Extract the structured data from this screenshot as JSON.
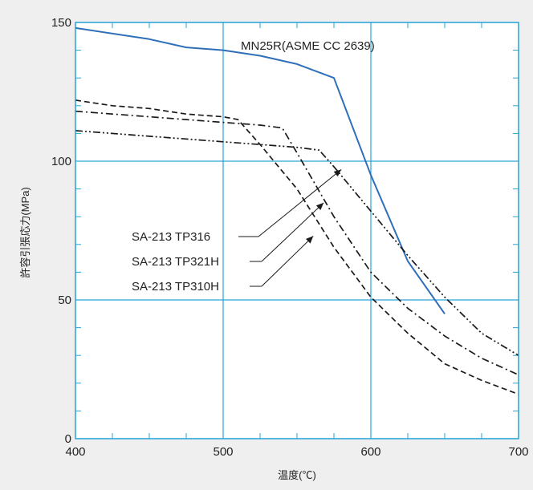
{
  "chart_data": {
    "type": "line",
    "xlabel": "温度(℃)",
    "ylabel": "許容引張応力(MPa)",
    "xlim": [
      400,
      700
    ],
    "ylim": [
      0,
      150
    ],
    "xticks": [
      400,
      500,
      600,
      700
    ],
    "yticks": [
      0,
      50,
      100,
      150
    ],
    "grid": true,
    "colors": {
      "background": "#efefef",
      "plot_bg": "#ffffff",
      "grid": "#29a3d6",
      "curve_blue": "#2f6fba",
      "curve_dark": "#1a1a1a"
    },
    "series": [
      {
        "name": "MN25R(ASME CC 2639)",
        "style": "solid",
        "color": "#2f6fba",
        "x": [
          400,
          450,
          475,
          500,
          525,
          550,
          575,
          600,
          625,
          650
        ],
        "y": [
          148,
          144,
          141,
          140,
          138,
          135,
          130,
          95,
          64,
          45
        ]
      },
      {
        "name": "SA-213 TP316",
        "style": "dash-dot-dot",
        "color": "#1a1a1a",
        "x": [
          400,
          450,
          475,
          500,
          525,
          550,
          565,
          575,
          600,
          625,
          650,
          675,
          700
        ],
        "y": [
          111,
          109,
          108,
          107,
          106,
          105,
          104,
          98,
          82,
          66,
          51,
          38,
          30
        ]
      },
      {
        "name": "SA-213 TP321H",
        "style": "dash-dot",
        "color": "#1a1a1a",
        "x": [
          400,
          450,
          475,
          500,
          525,
          540,
          550,
          575,
          600,
          625,
          650,
          675,
          700
        ],
        "y": [
          118,
          116,
          115,
          114,
          113,
          112,
          103,
          80,
          60,
          47,
          37,
          29,
          23
        ]
      },
      {
        "name": "SA-213 TP310H",
        "style": "dashed",
        "color": "#1a1a1a",
        "x": [
          400,
          425,
          450,
          475,
          500,
          510,
          525,
          550,
          575,
          600,
          625,
          650,
          675,
          700
        ],
        "y": [
          122,
          120,
          119,
          117,
          116,
          115,
          106,
          90,
          69,
          51,
          38,
          27,
          21,
          16
        ]
      }
    ],
    "annotations": [
      {
        "text": "MN25R(ASME CC 2639)"
      },
      {
        "text": "SA-213 TP316"
      },
      {
        "text": "SA-213 TP321H"
      },
      {
        "text": "SA-213 TP310H"
      }
    ]
  }
}
